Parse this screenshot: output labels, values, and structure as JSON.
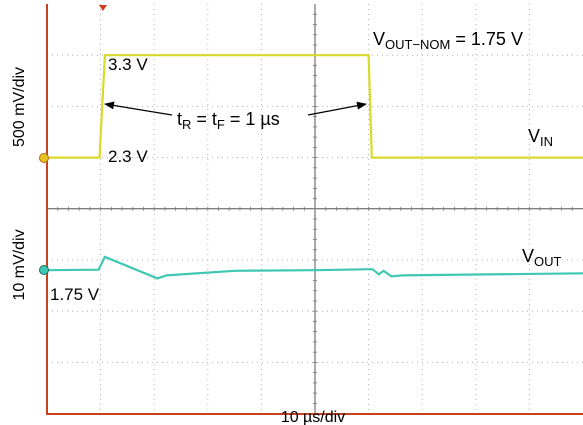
{
  "chart_data": {
    "type": "line",
    "title": "",
    "x_axis": {
      "label": "10 µs/div",
      "divisions": 10,
      "units_per_div": 10,
      "unit": "µs"
    },
    "y_axis_top": {
      "label": "500 mV/div"
    },
    "y_axis_bottom": {
      "label": "10 mV/div"
    },
    "grid": true,
    "series": [
      {
        "name": "V_IN",
        "color": "#d9d92a",
        "panel": "top",
        "unit": "V",
        "x": [
          0,
          9.8,
          10.8,
          60.0,
          60.6,
          100
        ],
        "values": [
          2.3,
          2.3,
          3.3,
          3.3,
          2.3,
          2.3
        ]
      },
      {
        "name": "V_OUT",
        "color": "#3ec8b2",
        "panel": "bottom",
        "unit": "mV",
        "x": [
          0,
          9.6,
          10.8,
          20.6,
          22.3,
          35,
          50,
          60.7,
          61.9,
          62.8,
          64.3,
          66.3,
          100
        ],
        "values": [
          0,
          0.1,
          2.6,
          -1.6,
          -1.0,
          -0.1,
          0.0,
          0.2,
          -0.8,
          -0.1,
          -1.2,
          -1.0,
          -0.6
        ]
      }
    ],
    "annotations": {
      "vout_nom_main": "V",
      "vout_nom_sub": "OUT−NOM",
      "vout_nom_value": " = 1.75 V",
      "vin_high": "3.3 V",
      "vin_low": "2.3 V",
      "vout_level": "1.75 V",
      "rise_t": "t",
      "rise_sub_r": "R",
      "rise_eq": " = t",
      "rise_sub_f": "F",
      "rise_value": " = 1 µs",
      "vin_main": "V",
      "vin_sub": "IN",
      "vout_main": "V",
      "vout_sub": "OUT"
    }
  }
}
